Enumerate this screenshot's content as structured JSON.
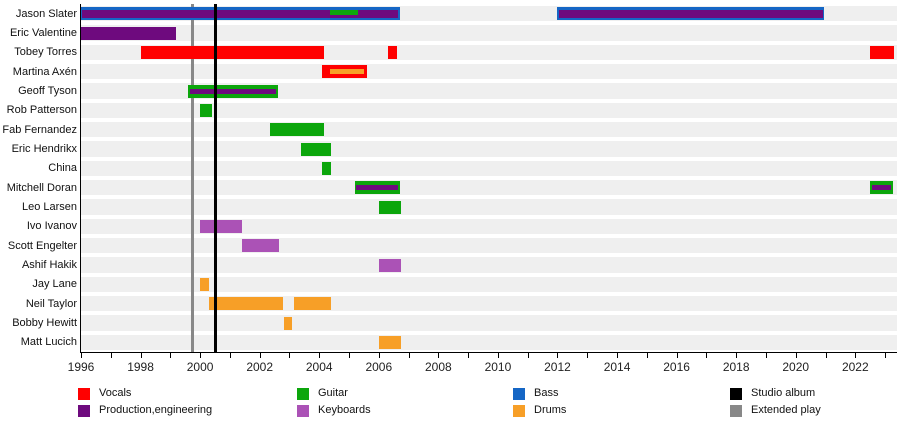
{
  "chart_data": {
    "type": "bar",
    "subtype": "timeline-band-membership",
    "title": "",
    "xlabel": "",
    "ylabel": "",
    "grid": false,
    "x_axis": {
      "min": 1996,
      "max": 2023.4,
      "labeled_ticks": [
        "1996",
        "1998",
        "2000",
        "2002",
        "2004",
        "2006",
        "2008",
        "2010",
        "2012",
        "2014",
        "2016",
        "2018",
        "2020",
        "2022"
      ],
      "labeled_tick_years": [
        1996,
        1998,
        2000,
        2002,
        2004,
        2006,
        2008,
        2010,
        2012,
        2014,
        2016,
        2018,
        2020,
        2022
      ],
      "minor_tick_every_years": 1
    },
    "colors": {
      "vocals": "#ff0000",
      "production": "#6e0a7e",
      "guitar": "#0ca60c",
      "keyboards": "#ab52b6",
      "bass": "#1566c5",
      "drums": "#f79f27",
      "studio_album": "#000000",
      "extended_play": "#888888"
    },
    "rows": [
      {
        "name": "Jason Slater",
        "bars": [
          {
            "start": 1996.0,
            "end": 2006.7,
            "role": "bass",
            "segments": [
              {
                "role": "production",
                "start": 1996.05,
                "end": 2006.65,
                "pos": "center-wide"
              },
              {
                "role": "guitar",
                "start": 2004.35,
                "end": 2005.3,
                "pos": "upper"
              }
            ]
          },
          {
            "start": 2012.0,
            "end": 2020.95,
            "role": "bass",
            "segments": [
              {
                "role": "production",
                "start": 2012.05,
                "end": 2020.9,
                "pos": "center-wide"
              }
            ]
          }
        ]
      },
      {
        "name": "Eric Valentine",
        "bars": [
          {
            "start": 1996.0,
            "end": 1999.2,
            "role": "production"
          }
        ]
      },
      {
        "name": "Tobey Torres",
        "bars": [
          {
            "start": 1998.0,
            "end": 2004.15,
            "role": "vocals"
          },
          {
            "start": 2006.3,
            "end": 2006.6,
            "role": "vocals"
          },
          {
            "start": 2022.5,
            "end": 2023.3,
            "role": "vocals"
          }
        ]
      },
      {
        "name": "Martina Axén",
        "bars": [
          {
            "start": 2004.1,
            "end": 2005.6,
            "role": "vocals",
            "segments": [
              {
                "role": "drums",
                "start": 2004.35,
                "end": 2005.5,
                "pos": "center"
              }
            ]
          }
        ]
      },
      {
        "name": "Geoff Tyson",
        "bars": [
          {
            "start": 1999.6,
            "end": 2002.6,
            "role": "guitar",
            "segments": [
              {
                "role": "production",
                "start": 1999.65,
                "end": 2002.55,
                "pos": "center"
              }
            ]
          }
        ]
      },
      {
        "name": "Rob Patterson",
        "bars": [
          {
            "start": 2000.0,
            "end": 2000.4,
            "role": "guitar"
          }
        ]
      },
      {
        "name": "Fab Fernandez",
        "bars": [
          {
            "start": 2002.35,
            "end": 2004.15,
            "role": "guitar"
          }
        ]
      },
      {
        "name": "Eric Hendrikx",
        "bars": [
          {
            "start": 2003.4,
            "end": 2004.4,
            "role": "guitar"
          }
        ]
      },
      {
        "name": "China",
        "bars": [
          {
            "start": 2004.1,
            "end": 2004.4,
            "role": "guitar"
          }
        ]
      },
      {
        "name": "Mitchell Doran",
        "bars": [
          {
            "start": 2005.2,
            "end": 2006.7,
            "role": "guitar",
            "segments": [
              {
                "role": "production",
                "start": 2005.25,
                "end": 2006.65,
                "pos": "center"
              }
            ]
          },
          {
            "start": 2022.5,
            "end": 2023.25,
            "role": "guitar",
            "segments": [
              {
                "role": "production",
                "start": 2022.55,
                "end": 2023.2,
                "pos": "center"
              }
            ]
          }
        ]
      },
      {
        "name": "Leo Larsen",
        "bars": [
          {
            "start": 2006.0,
            "end": 2006.75,
            "role": "guitar"
          }
        ]
      },
      {
        "name": "Ivo Ivanov",
        "bars": [
          {
            "start": 2000.0,
            "end": 2001.4,
            "role": "keyboards"
          }
        ]
      },
      {
        "name": "Scott Engelter",
        "bars": [
          {
            "start": 2001.4,
            "end": 2002.65,
            "role": "keyboards"
          }
        ]
      },
      {
        "name": "Ashif Hakik",
        "bars": [
          {
            "start": 2006.0,
            "end": 2006.75,
            "role": "keyboards"
          }
        ]
      },
      {
        "name": "Jay Lane",
        "bars": [
          {
            "start": 2000.0,
            "end": 2000.3,
            "role": "drums"
          }
        ]
      },
      {
        "name": "Neil Taylor",
        "bars": [
          {
            "start": 2000.3,
            "end": 2002.8,
            "role": "drums"
          },
          {
            "start": 2003.15,
            "end": 2004.4,
            "role": "drums"
          }
        ]
      },
      {
        "name": "Bobby Hewitt",
        "bars": [
          {
            "start": 2002.8,
            "end": 2003.1,
            "role": "drums"
          }
        ]
      },
      {
        "name": "Matt Lucich",
        "bars": [
          {
            "start": 2006.0,
            "end": 2006.75,
            "role": "drums"
          }
        ]
      }
    ],
    "events": [
      {
        "year": 1999.75,
        "type": "extended_play",
        "label": "Extended play"
      },
      {
        "year": 2000.5,
        "type": "studio_album",
        "label": "Studio album"
      }
    ],
    "legend": [
      {
        "label": "Vocals",
        "role": "vocals"
      },
      {
        "label": "Production,engineering",
        "role": "production"
      },
      {
        "label": "Guitar",
        "role": "guitar"
      },
      {
        "label": "Keyboards",
        "role": "keyboards"
      },
      {
        "label": "Bass",
        "role": "bass"
      },
      {
        "label": "Drums",
        "role": "drums"
      },
      {
        "label": "Studio album",
        "role": "studio_album"
      },
      {
        "label": "Extended play",
        "role": "extended_play"
      }
    ]
  }
}
